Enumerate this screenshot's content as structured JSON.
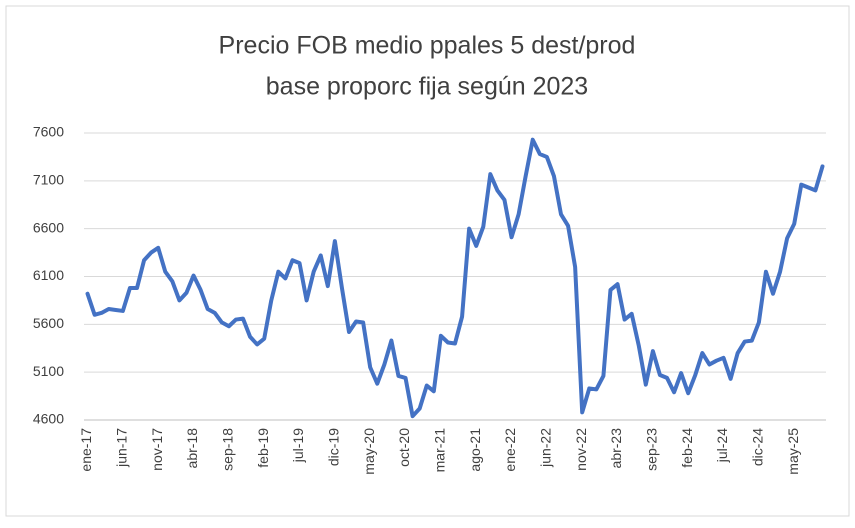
{
  "chart_data": {
    "type": "line",
    "title": [
      "Precio FOB medio ppales 5 dest/prod",
      "base proporc fija según 2023"
    ],
    "categories": [
      "ene-17",
      null,
      null,
      null,
      null,
      "jun-17",
      null,
      null,
      null,
      null,
      "nov-17",
      null,
      null,
      null,
      null,
      "abr-18",
      null,
      null,
      null,
      null,
      "sep-18",
      null,
      null,
      null,
      null,
      "feb-19",
      null,
      null,
      null,
      null,
      "jul-19",
      null,
      null,
      null,
      null,
      "dic-19",
      null,
      null,
      null,
      null,
      "may-20",
      null,
      null,
      null,
      null,
      "oct-20",
      null,
      null,
      null,
      null,
      "mar-21",
      null,
      null,
      null,
      null,
      "ago-21",
      null,
      null,
      null,
      null,
      "ene-22",
      null,
      null,
      null,
      null,
      "jun-22",
      null,
      null,
      null,
      null,
      "nov-22",
      null,
      null,
      null,
      null,
      "abr-23",
      null,
      null,
      null,
      null,
      "sep-23",
      null,
      null,
      null,
      null,
      "feb-24",
      null,
      null,
      null,
      null,
      "jul-24",
      null,
      null,
      null,
      null,
      "dic-24",
      null,
      null,
      null,
      null,
      "may-25",
      null,
      null,
      null,
      null
    ],
    "values": [
      5920,
      5700,
      5720,
      5760,
      5750,
      5740,
      5980,
      5980,
      6270,
      6350,
      6400,
      6150,
      6050,
      5850,
      5930,
      6110,
      5960,
      5760,
      5720,
      5620,
      5580,
      5650,
      5660,
      5470,
      5390,
      5450,
      5850,
      6150,
      6080,
      6270,
      6240,
      5850,
      6150,
      6320,
      6000,
      6470,
      5980,
      5520,
      5630,
      5620,
      5150,
      4980,
      5180,
      5430,
      5060,
      5040,
      4640,
      4720,
      4960,
      4900,
      5480,
      5410,
      5400,
      5680,
      6600,
      6420,
      6620,
      7170,
      7000,
      6900,
      6510,
      6750,
      7150,
      7530,
      7380,
      7350,
      7150,
      6750,
      6630,
      6200,
      4680,
      4930,
      4920,
      5060,
      5960,
      6020,
      5650,
      5710,
      5380,
      4970,
      5320,
      5070,
      5040,
      4890,
      5090,
      4880,
      5070,
      5300,
      5180,
      5220,
      5250,
      5030,
      5300,
      5420,
      5430,
      5620,
      6150,
      5920,
      6150,
      6500,
      6650,
      7060,
      7030,
      7000,
      7250
    ],
    "color": "#4472c4",
    "ylim": [
      4600,
      7600
    ],
    "yticks": [
      4600,
      5100,
      5600,
      6100,
      6600,
      7100,
      7600
    ],
    "grid": true
  }
}
